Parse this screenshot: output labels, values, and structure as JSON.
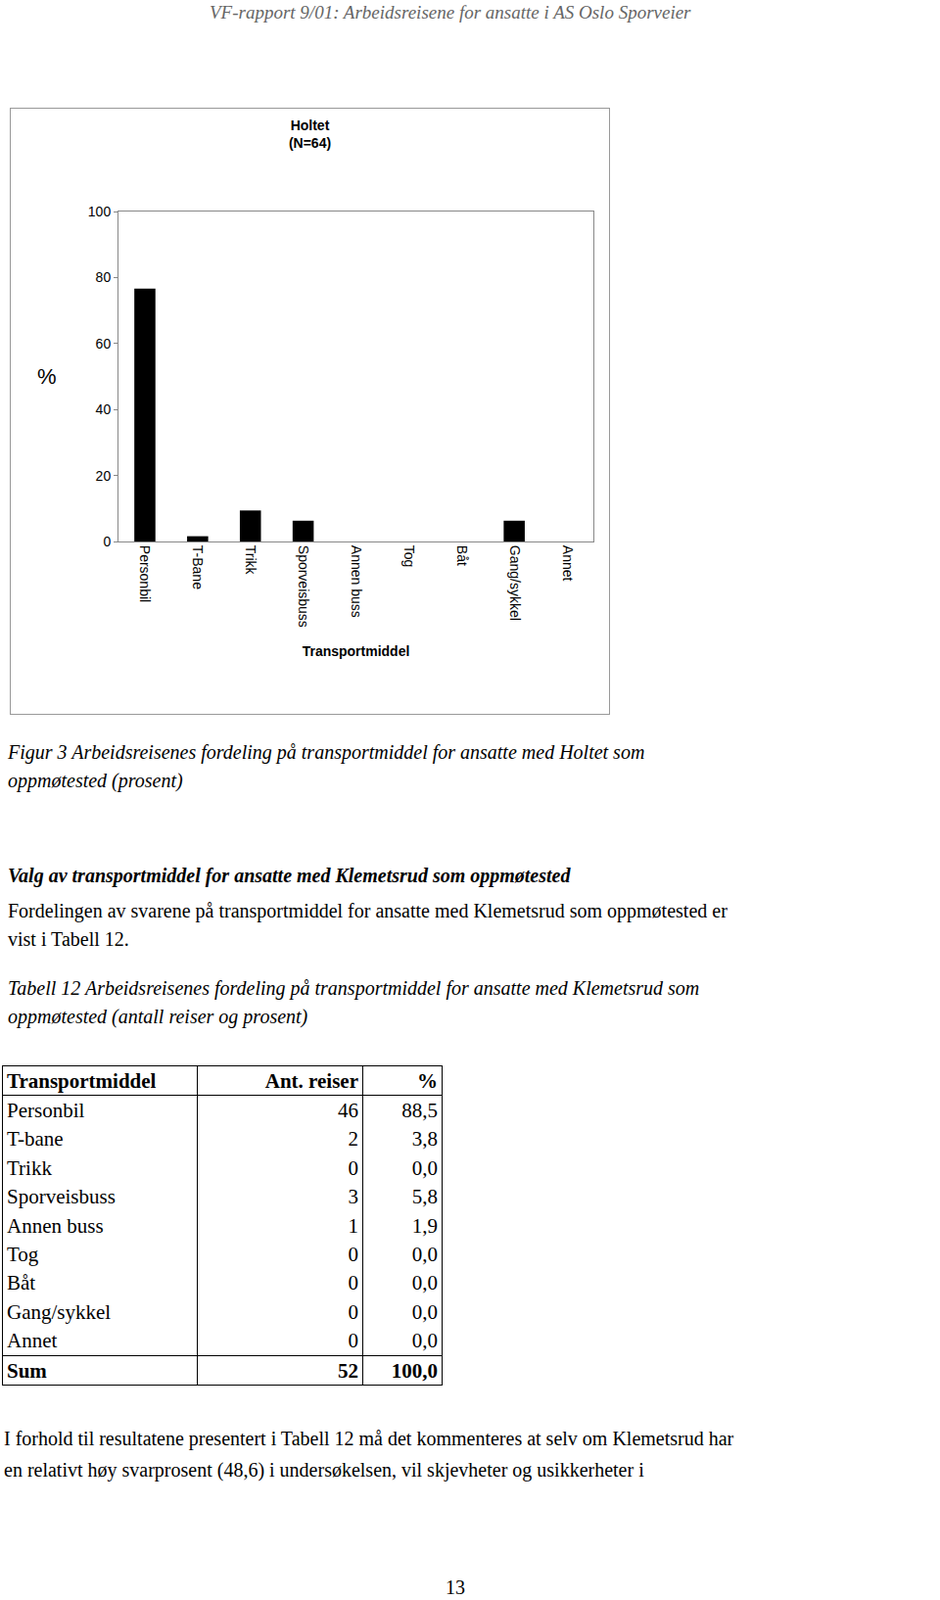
{
  "header": "VF-rapport 9/01: Arbeidsreisene for ansatte i AS Oslo Sporveier",
  "chart_data": {
    "type": "bar",
    "title": "Holtet",
    "subtitle": "(N=64)",
    "x_label": "Transportmiddel",
    "y_label": "%",
    "categories": [
      "Personbil",
      "T-Bane",
      "Trikk",
      "Sporveisbuss",
      "Annen buss",
      "Tog",
      "Båt",
      "Gang/sykkel",
      "Annet"
    ],
    "values": [
      76.6,
      1.6,
      9.4,
      6.3,
      0,
      0,
      0,
      6.3,
      0
    ],
    "color": "#000000",
    "ylim": [
      0,
      100
    ],
    "yticks": [
      0,
      20,
      40,
      60,
      80,
      100
    ],
    "grid": false
  },
  "figure_caption": [
    "Figur 3 Arbeidsreisenes fordeling på transportmiddel for ansatte med Holtet som",
    "oppmøtested (prosent)"
  ],
  "section": {
    "heading": "Valg av transportmiddel for ansatte med Klemetsrud som oppmøtested",
    "lines": [
      "Fordelingen av svarene på transportmiddel for ansatte med Klemetsrud som oppmøtested er",
      "vist i Tabell 12."
    ]
  },
  "table": {
    "caption": [
      "Tabell 12 Arbeidsreisenes fordeling på transportmiddel for ansatte med Klemetsrud som",
      "oppmøtested (antall reiser og prosent)"
    ],
    "header": [
      "Transportmiddel",
      "Ant. reiser",
      "%"
    ],
    "rows": [
      [
        "Personbil",
        "46",
        "88,5"
      ],
      [
        "T-bane",
        "2",
        "3,8"
      ],
      [
        "Trikk",
        "0",
        "0,0"
      ],
      [
        "Sporveisbuss",
        "3",
        "5,8"
      ],
      [
        "Annen buss",
        "1",
        "1,9"
      ],
      [
        "Tog",
        "0",
        "0,0"
      ],
      [
        "Båt",
        "0",
        "0,0"
      ],
      [
        "Gang/sykkel",
        "0",
        "0,0"
      ],
      [
        "Annet",
        "0",
        "0,0"
      ]
    ],
    "total": [
      "Sum",
      "52",
      "100,0"
    ]
  },
  "closing_lines": [
    "I forhold til resultatene presentert i Tabell 12 må det kommenteres at selv om Klemetsrud har",
    "en relativt høy svarprosent (48,6) i undersøkelsen, vil skjevheter og usikkerheter i"
  ],
  "page_number": "13"
}
